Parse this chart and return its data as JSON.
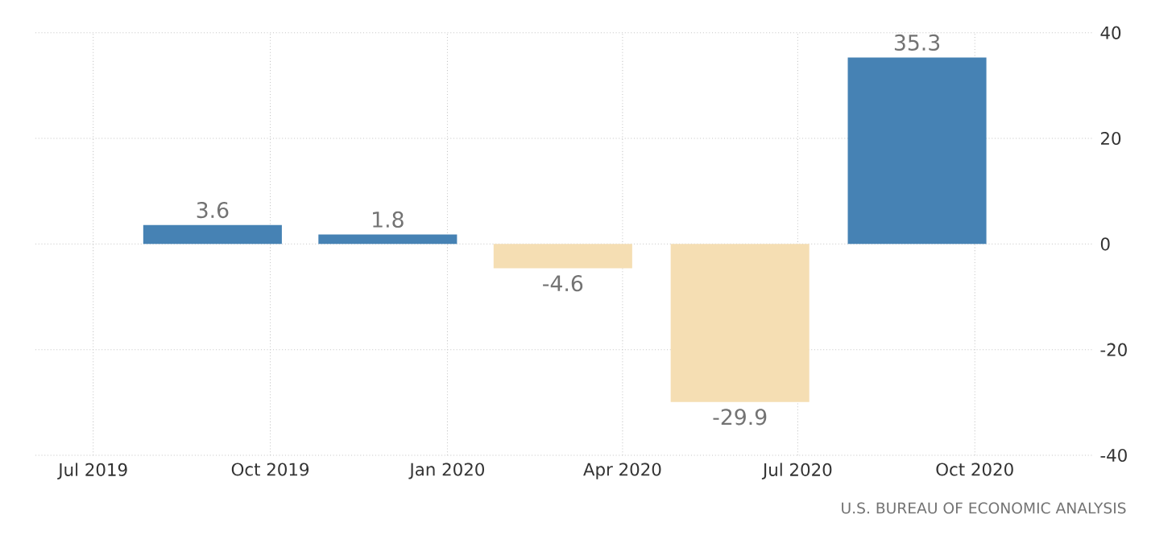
{
  "chart_data": {
    "type": "bar",
    "x": [
      "2019-09",
      "2019-12",
      "2020-03",
      "2020-06",
      "2020-09"
    ],
    "values": [
      3.6,
      1.8,
      -4.6,
      -29.9,
      35.3
    ],
    "colors": [
      "#4682b4",
      "#4682b4",
      "#f5deb3",
      "#f5deb3",
      "#4682b4"
    ],
    "data_labels": true,
    "xlim": [
      "2019-06",
      "2020-12"
    ],
    "xticks": [
      {
        "value": "2019-07",
        "label": "Jul 2019"
      },
      {
        "value": "2019-10",
        "label": "Oct 2019"
      },
      {
        "value": "2020-01",
        "label": "Jan 2020"
      },
      {
        "value": "2020-04",
        "label": "Apr 2020"
      },
      {
        "value": "2020-07",
        "label": "Jul 2020"
      },
      {
        "value": "2020-10",
        "label": "Oct 2020"
      }
    ],
    "ylim": [
      -40,
      40
    ],
    "yticks": [
      -40,
      -20,
      0,
      20,
      40
    ],
    "grid": true,
    "annotations": [
      "U.S. BUREAU OF ECONOMIC ANALYSIS"
    ]
  }
}
